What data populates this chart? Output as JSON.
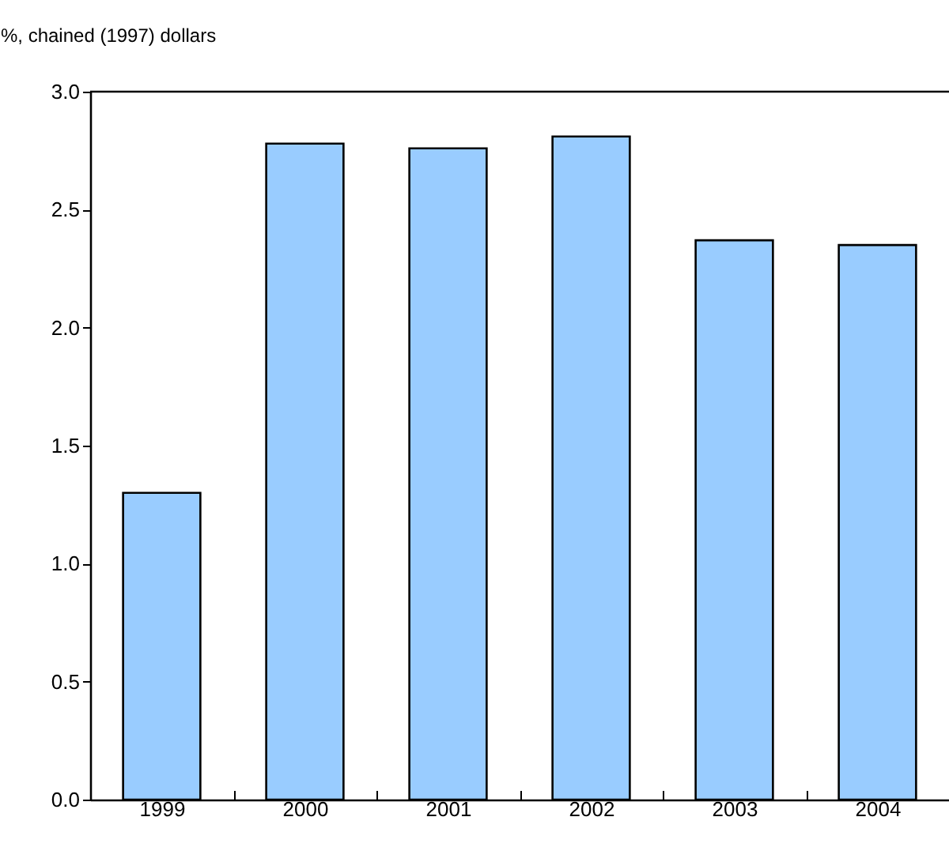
{
  "chart_data": {
    "type": "bar",
    "ylabel": "%, chained (1997) dollars",
    "categories": [
      "1999",
      "2000",
      "2001",
      "2002",
      "2003",
      "2004"
    ],
    "values": [
      1.3,
      2.78,
      2.76,
      2.81,
      2.37,
      2.35
    ],
    "color": "#99ccff",
    "ylim": [
      0,
      3.0
    ],
    "yticks": [
      {
        "value": 0,
        "label": "0.0"
      },
      {
        "value": 0.5,
        "label": "0.5"
      },
      {
        "value": 1,
        "label": "1.0"
      },
      {
        "value": 1.5,
        "label": "1.5"
      },
      {
        "value": 2,
        "label": "2.0"
      },
      {
        "value": 2.5,
        "label": "2.5"
      },
      {
        "value": 3,
        "label": "3.0"
      }
    ],
    "grid": false
  }
}
